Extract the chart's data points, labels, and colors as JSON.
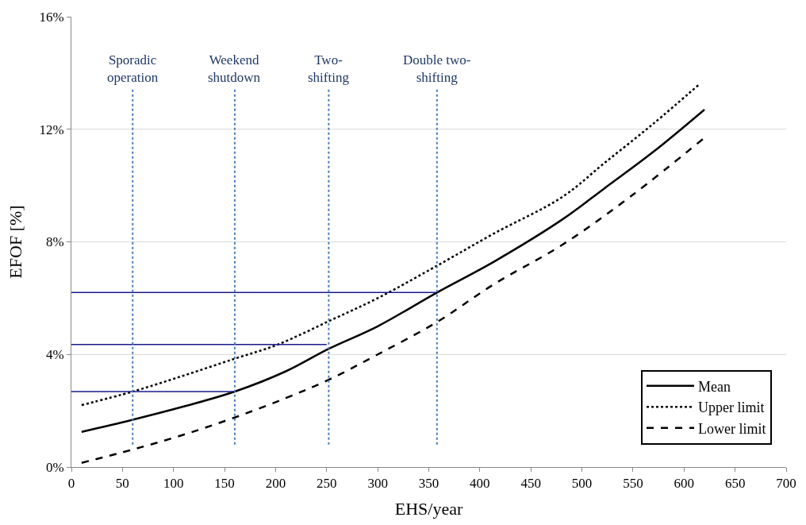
{
  "chart_data": {
    "type": "line",
    "xlabel": "EHS/year",
    "ylabel": "EFOF [%]",
    "xlim": [
      0,
      700
    ],
    "xticks": [
      0,
      50,
      100,
      150,
      200,
      250,
      300,
      350,
      400,
      450,
      500,
      550,
      600,
      650,
      700
    ],
    "ylim": [
      0,
      16
    ],
    "yticks": [
      {
        "value": 0,
        "label": "0%"
      },
      {
        "value": 4,
        "label": "4%"
      },
      {
        "value": 8,
        "label": "8%"
      },
      {
        "value": 12,
        "label": "12%"
      },
      {
        "value": 16,
        "label": "16%"
      }
    ],
    "grid": "y",
    "legend": "bottom right",
    "marker": "none",
    "series": [
      {
        "name": "Mean",
        "color": "#000000",
        "line_style": "solid",
        "x": [
          10,
          60,
          110,
          160,
          210,
          252,
          300,
          358,
          414,
          481,
          522,
          570,
          620
        ],
        "values": [
          1.25,
          1.68,
          2.15,
          2.68,
          3.4,
          4.2,
          5.0,
          6.2,
          7.3,
          8.8,
          9.9,
          11.2,
          12.7
        ]
      },
      {
        "name": "Upper limit",
        "color": "#000000",
        "line_style": "dotted",
        "x": [
          10,
          60,
          110,
          160,
          202,
          252,
          300,
          358,
          414,
          481,
          522,
          570,
          615
        ],
        "values": [
          2.2,
          2.68,
          3.25,
          3.85,
          4.35,
          5.18,
          6.0,
          7.15,
          8.3,
          9.6,
          10.8,
          12.2,
          13.6
        ]
      },
      {
        "name": "Lower limit",
        "color": "#000000",
        "line_style": "dashed",
        "x": [
          10,
          60,
          110,
          160,
          210,
          252,
          300,
          358,
          414,
          481,
          549,
          620
        ],
        "values": [
          0.15,
          0.62,
          1.15,
          1.76,
          2.45,
          3.1,
          4.0,
          5.15,
          6.5,
          7.9,
          9.65,
          11.7
        ]
      },
      {
        "color": "#1a1a8c",
        "line_style": "solid",
        "x": [
          0,
          159
        ],
        "values": [
          2.68,
          2.68
        ]
      },
      {
        "color": "#1a1a8c",
        "line_style": "solid",
        "x": [
          0,
          250
        ],
        "values": [
          4.35,
          4.35
        ]
      },
      {
        "color": "#1a1a8c",
        "line_style": "solid",
        "x": [
          0,
          357
        ],
        "values": [
          6.2,
          6.2
        ]
      }
    ],
    "ref_lines": [
      {
        "axis": "x",
        "value": 60,
        "label": "Sporadic\noperation",
        "color": "#4a7ebb",
        "line_style": "dotted"
      },
      {
        "axis": "x",
        "value": 160,
        "label": "Weekend\nshutdown",
        "color": "#4a7ebb",
        "line_style": "dotted"
      },
      {
        "axis": "x",
        "value": 252,
        "label": "Two-\nshifting",
        "color": "#4a7ebb",
        "line_style": "dotted"
      },
      {
        "axis": "x",
        "value": 358,
        "label": "Double two-\nshifting",
        "color": "#4a7ebb",
        "line_style": "dotted"
      }
    ]
  }
}
